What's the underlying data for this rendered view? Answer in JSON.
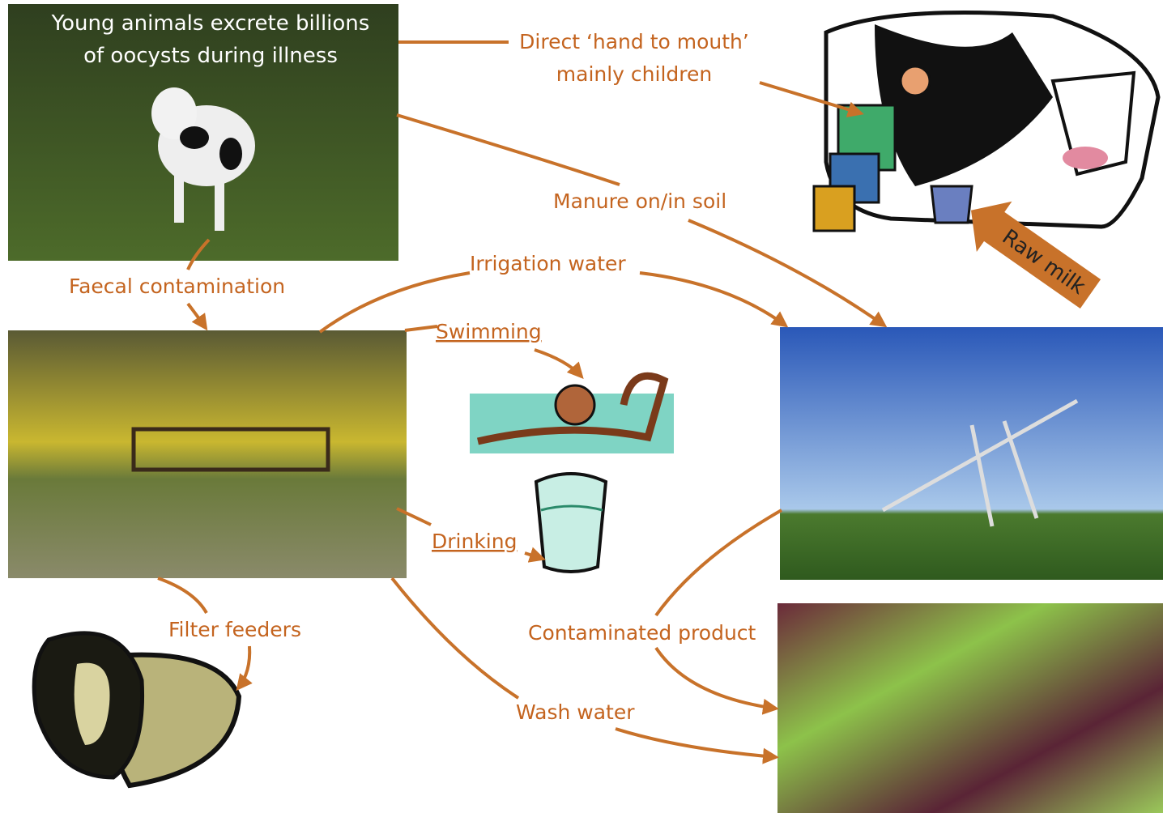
{
  "source": {
    "caption": [
      "Young animals excrete billions",
      "of oocysts during illness"
    ]
  },
  "routes": {
    "direct": [
      "Direct ‘hand to mouth’",
      "mainly children"
    ],
    "manure": "Manure on/in soil",
    "raw_milk": "Raw milk",
    "faecal": "Faecal contamination",
    "irrigation": "Irrigation water",
    "swimming": "Swimming",
    "drinking": "Drinking",
    "filter": "Filter feeders",
    "product": "Contaminated product",
    "wash": "Wash water"
  }
}
